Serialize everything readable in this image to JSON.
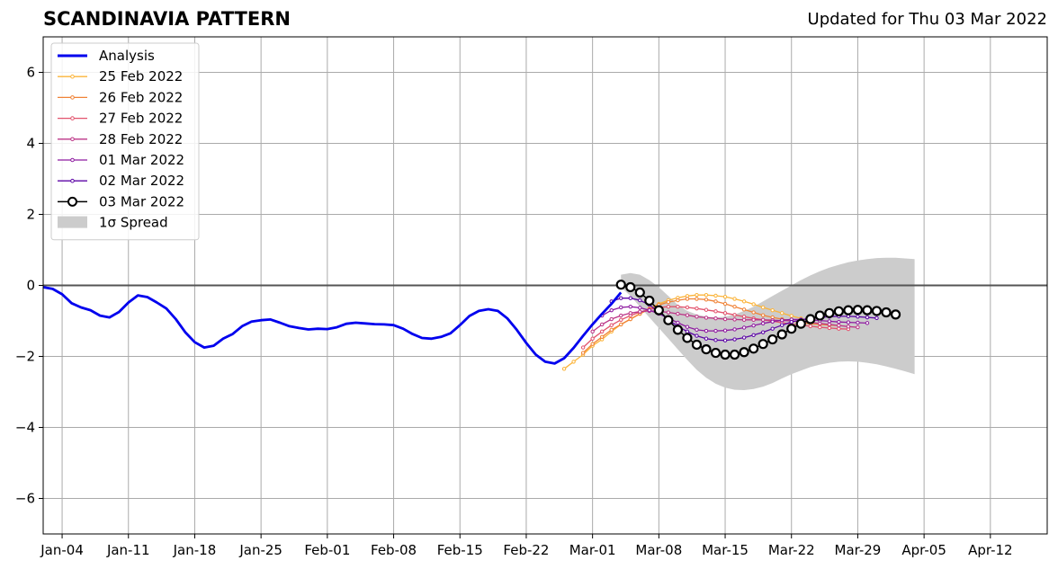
{
  "chart_data": {
    "type": "line",
    "title": "SCANDINAVIA PATTERN",
    "subtitle": "Updated for Thu 03 Mar 2022",
    "xlabel": "",
    "ylabel": "",
    "x_range": [
      "2022-01-02",
      "2022-04-18"
    ],
    "ylim": [
      -7,
      7
    ],
    "grid": true,
    "legend_position": "top-left",
    "x_ticks": [
      {
        "date": "2022-01-04",
        "label": "Jan-04"
      },
      {
        "date": "2022-01-11",
        "label": "Jan-11"
      },
      {
        "date": "2022-01-18",
        "label": "Jan-18"
      },
      {
        "date": "2022-01-25",
        "label": "Jan-25"
      },
      {
        "date": "2022-02-01",
        "label": "Feb-01"
      },
      {
        "date": "2022-02-08",
        "label": "Feb-08"
      },
      {
        "date": "2022-02-15",
        "label": "Feb-15"
      },
      {
        "date": "2022-02-22",
        "label": "Feb-22"
      },
      {
        "date": "2022-03-01",
        "label": "Mar-01"
      },
      {
        "date": "2022-03-08",
        "label": "Mar-08"
      },
      {
        "date": "2022-03-15",
        "label": "Mar-15"
      },
      {
        "date": "2022-03-22",
        "label": "Mar-22"
      },
      {
        "date": "2022-03-29",
        "label": "Mar-29"
      },
      {
        "date": "2022-04-05",
        "label": "Apr-05"
      },
      {
        "date": "2022-04-12",
        "label": "Apr-12"
      }
    ],
    "y_ticks": [
      {
        "value": 6,
        "label": "6"
      },
      {
        "value": 4,
        "label": "4"
      },
      {
        "value": 2,
        "label": "2"
      },
      {
        "value": 0,
        "label": "0"
      },
      {
        "value": -2,
        "label": "−2"
      },
      {
        "value": -4,
        "label": "−4"
      },
      {
        "value": -6,
        "label": "−6"
      }
    ],
    "analysis": {
      "name": "Analysis",
      "color": "#0000ee",
      "start_date": "2022-01-02",
      "values": [
        -0.05,
        -0.1,
        -0.25,
        -0.5,
        -0.62,
        -0.7,
        -0.85,
        -0.9,
        -0.75,
        -0.48,
        -0.28,
        -0.33,
        -0.48,
        -0.65,
        -0.95,
        -1.32,
        -1.6,
        -1.75,
        -1.7,
        -1.5,
        -1.37,
        -1.15,
        -1.02,
        -0.98,
        -0.96,
        -1.05,
        -1.15,
        -1.2,
        -1.24,
        -1.22,
        -1.23,
        -1.18,
        -1.08,
        -1.05,
        -1.07,
        -1.09,
        -1.1,
        -1.12,
        -1.22,
        -1.37,
        -1.48,
        -1.5,
        -1.45,
        -1.35,
        -1.12,
        -0.86,
        -0.72,
        -0.67,
        -0.72,
        -0.93,
        -1.25,
        -1.62,
        -1.95,
        -2.15,
        -2.2,
        -2.05,
        -1.76,
        -1.42,
        -1.1,
        -0.8,
        -0.52,
        -0.2
      ]
    },
    "forecasts": [
      {
        "name": "25 Feb 2022",
        "color": "#fbb43a",
        "start_date": "2022-02-26",
        "values": [
          -2.35,
          -2.15,
          -1.95,
          -1.7,
          -1.52,
          -1.3,
          -1.1,
          -0.95,
          -0.8,
          -0.65,
          -0.52,
          -0.42,
          -0.35,
          -0.3,
          -0.27,
          -0.27,
          -0.29,
          -0.32,
          -0.38,
          -0.45,
          -0.53,
          -0.62,
          -0.7,
          -0.78,
          -0.86,
          -0.93,
          -1.0
        ]
      },
      {
        "name": "26 Feb 2022",
        "color": "#f08337",
        "start_date": "2022-02-28",
        "values": [
          -1.9,
          -1.65,
          -1.45,
          -1.25,
          -1.1,
          -0.95,
          -0.8,
          -0.67,
          -0.55,
          -0.47,
          -0.42,
          -0.38,
          -0.38,
          -0.4,
          -0.45,
          -0.52,
          -0.6,
          -0.68,
          -0.76,
          -0.84,
          -0.9,
          -0.95,
          -1.0,
          -1.05,
          -1.08,
          -1.1,
          -1.12,
          -1.13
        ]
      },
      {
        "name": "27 Feb 2022",
        "color": "#e2536d",
        "start_date": "2022-02-28",
        "values": [
          -1.75,
          -1.5,
          -1.3,
          -1.12,
          -0.97,
          -0.85,
          -0.75,
          -0.68,
          -0.62,
          -0.6,
          -0.6,
          -0.62,
          -0.65,
          -0.69,
          -0.73,
          -0.78,
          -0.83,
          -0.88,
          -0.93,
          -0.97,
          -1.01,
          -1.05,
          -1.09,
          -1.12,
          -1.15,
          -1.18,
          -1.2,
          -1.22,
          -1.23
        ]
      },
      {
        "name": "28 Feb 2022",
        "color": "#bc3587",
        "start_date": "2022-03-01",
        "values": [
          -1.3,
          -1.1,
          -0.95,
          -0.85,
          -0.78,
          -0.74,
          -0.72,
          -0.73,
          -0.76,
          -0.8,
          -0.84,
          -0.88,
          -0.91,
          -0.93,
          -0.95,
          -0.96,
          -0.97,
          -0.97,
          -0.97,
          -0.98,
          -0.99,
          -1.0,
          -1.02,
          -1.04,
          -1.07,
          -1.1,
          -1.13,
          -1.16,
          -1.18
        ]
      },
      {
        "name": "01 Mar 2022",
        "color": "#8e1aa0",
        "start_date": "2022-03-02",
        "values": [
          -0.85,
          -0.7,
          -0.62,
          -0.6,
          -0.63,
          -0.7,
          -0.8,
          -0.92,
          -1.05,
          -1.17,
          -1.25,
          -1.28,
          -1.28,
          -1.27,
          -1.24,
          -1.19,
          -1.13,
          -1.07,
          -1.02,
          -0.98,
          -0.96,
          -0.96,
          -0.97,
          -0.99,
          -1.01,
          -1.03,
          -1.04,
          -1.05,
          -1.06
        ]
      },
      {
        "name": "02 Mar 2022",
        "color": "#5c05a6",
        "start_date": "2022-03-03",
        "values": [
          -0.45,
          -0.36,
          -0.36,
          -0.42,
          -0.55,
          -0.75,
          -0.97,
          -1.15,
          -1.3,
          -1.42,
          -1.5,
          -1.54,
          -1.55,
          -1.52,
          -1.47,
          -1.4,
          -1.32,
          -1.22,
          -1.12,
          -1.03,
          -0.97,
          -0.93,
          -0.9,
          -0.88,
          -0.87,
          -0.87,
          -0.88,
          -0.9,
          -0.92
        ]
      }
    ],
    "latest": {
      "name": "03 Mar 2022",
      "color": "#000000",
      "start_date": "2022-03-04",
      "values": [
        0.02,
        -0.05,
        -0.2,
        -0.43,
        -0.7,
        -0.98,
        -1.25,
        -1.48,
        -1.67,
        -1.8,
        -1.9,
        -1.95,
        -1.95,
        -1.88,
        -1.78,
        -1.65,
        -1.52,
        -1.38,
        -1.22,
        -1.08,
        -0.95,
        -0.85,
        -0.78,
        -0.73,
        -0.7,
        -0.69,
        -0.7,
        -0.72,
        -0.76,
        -0.82
      ]
    },
    "spread": {
      "name": "1σ Spread",
      "color": "#cccccc",
      "start_date": "2022-03-04",
      "upper": [
        0.3,
        0.35,
        0.3,
        0.15,
        -0.05,
        -0.3,
        -0.55,
        -0.72,
        -0.82,
        -0.88,
        -0.9,
        -0.88,
        -0.82,
        -0.72,
        -0.6,
        -0.45,
        -0.3,
        -0.15,
        0.0,
        0.15,
        0.28,
        0.4,
        0.5,
        0.58,
        0.65,
        0.7,
        0.74,
        0.77,
        0.78,
        0.78,
        0.76,
        0.74
      ],
      "lower": [
        -0.05,
        -0.3,
        -0.6,
        -0.9,
        -1.2,
        -1.5,
        -1.8,
        -2.1,
        -2.38,
        -2.6,
        -2.77,
        -2.88,
        -2.94,
        -2.95,
        -2.92,
        -2.85,
        -2.75,
        -2.62,
        -2.5,
        -2.4,
        -2.3,
        -2.23,
        -2.18,
        -2.15,
        -2.14,
        -2.15,
        -2.18,
        -2.22,
        -2.28,
        -2.35,
        -2.42,
        -2.5
      ]
    },
    "legend": [
      {
        "key": "analysis",
        "label": "Analysis"
      },
      {
        "key": "f0",
        "label": "25 Feb 2022"
      },
      {
        "key": "f1",
        "label": "26 Feb 2022"
      },
      {
        "key": "f2",
        "label": "27 Feb 2022"
      },
      {
        "key": "f3",
        "label": "28 Feb 2022"
      },
      {
        "key": "f4",
        "label": "01 Mar 2022"
      },
      {
        "key": "f5",
        "label": "02 Mar 2022"
      },
      {
        "key": "latest",
        "label": "03 Mar 2022"
      },
      {
        "key": "spread",
        "label": "1σ Spread"
      }
    ]
  }
}
